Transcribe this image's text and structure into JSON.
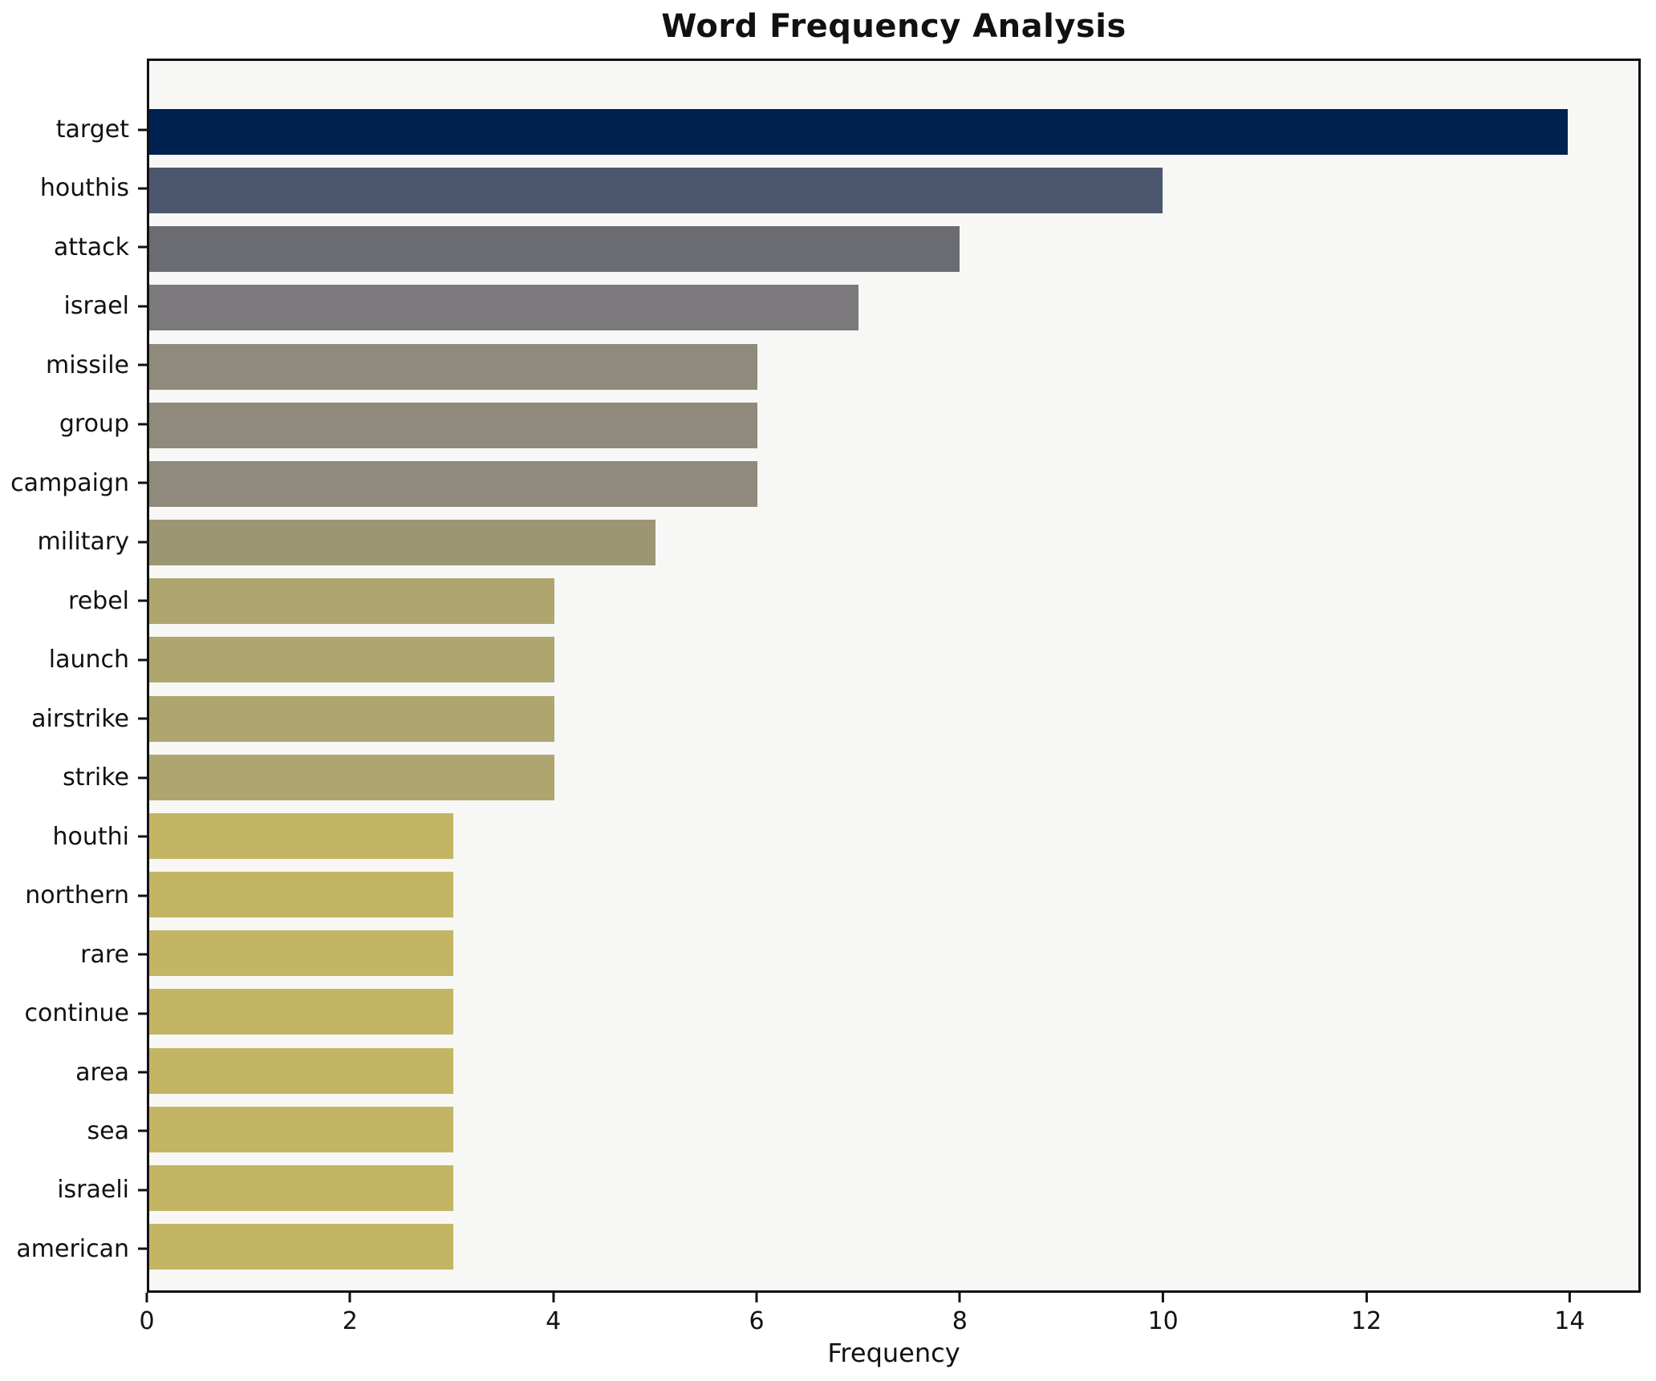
{
  "chart_data": {
    "type": "bar",
    "orientation": "horizontal",
    "title": "Word Frequency Analysis",
    "xlabel": "Frequency",
    "ylabel": "",
    "xlim": [
      0,
      14.7
    ],
    "xticks": [
      0,
      2,
      4,
      6,
      8,
      10,
      12,
      14
    ],
    "grid": false,
    "legend": null,
    "plot_background": "#f7f7f5",
    "spine_color": "#111111",
    "categories": [
      "target",
      "houthis",
      "attack",
      "israel",
      "missile",
      "group",
      "campaign",
      "military",
      "rebel",
      "launch",
      "airstrike",
      "strike",
      "houthi",
      "northern",
      "rare",
      "continue",
      "area",
      "sea",
      "israeli",
      "american"
    ],
    "values": [
      14,
      10,
      8,
      7,
      6,
      6,
      6,
      5,
      4,
      4,
      4,
      4,
      3,
      3,
      3,
      3,
      3,
      3,
      3,
      3
    ],
    "bar_colors": [
      "#002250",
      "#4c566e",
      "#6b6c72",
      "#7b797b",
      "#8f8a7c",
      "#8f8a7c",
      "#8f8a7c",
      "#9d9672",
      "#aea66e",
      "#aea66e",
      "#aea66e",
      "#aea66e",
      "#c4b565",
      "#c4b565",
      "#c4b565",
      "#c4b565",
      "#c4b565",
      "#c4b565",
      "#c4b565",
      "#c4b565"
    ]
  }
}
